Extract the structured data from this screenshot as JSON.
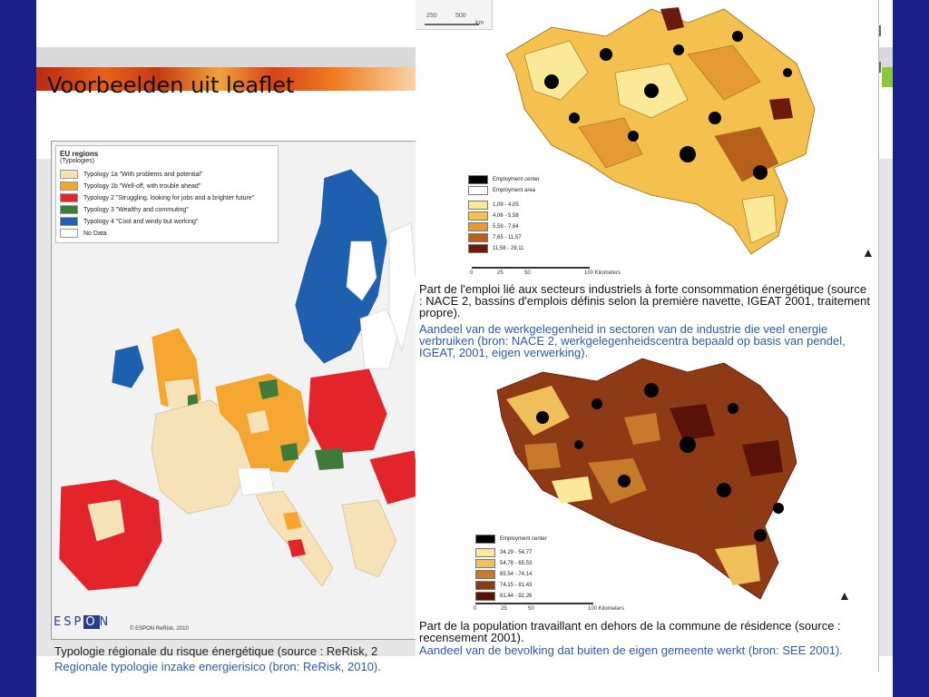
{
  "slide": {
    "title": "Voorbeelden uit leaflet"
  },
  "europe_map": {
    "legend_title": "EU regions",
    "legend_subtitle": "(Typologies)",
    "legend_items": [
      {
        "label": "Typology 1a \"With problems and potential\"",
        "color": "#f7e2b8"
      },
      {
        "label": "Typology 1b \"Well-off, with trouble ahead\"",
        "color": "#f4a630"
      },
      {
        "label": "Typology 2 \"Struggling, looking for jobs and a brighter future\"",
        "color": "#e3242b"
      },
      {
        "label": "Typology 3 \"Wealthy and commuting\"",
        "color": "#3f7a3a"
      },
      {
        "label": "Typology 4 \"Cool and windy but working\"",
        "color": "#1f5fb0"
      },
      {
        "label": "No Data",
        "color": "#ffffff"
      }
    ],
    "logo": "ESPON",
    "credit": "© ESPON ReRisk, 2010",
    "caption_fr": "Typologie régionale du risque énergétique (source : ReRisk, 2",
    "caption_nl": "Regionale typologie inzake energierisico (bron: ReRisk, 2010)."
  },
  "belgium_top": {
    "scale_labels": [
      "250",
      "500",
      "km"
    ],
    "legend_items": [
      {
        "label": "Employment center",
        "color": "#000000"
      },
      {
        "label": "Employment area",
        "color": "#ffffff"
      },
      {
        "label": "1,09 - 4,05",
        "color": "#fbe99a"
      },
      {
        "label": "4,06 - 5,58",
        "color": "#f4c14f"
      },
      {
        "label": "5,59 - 7,64",
        "color": "#e59a34"
      },
      {
        "label": "7,65 - 11,57",
        "color": "#b85f1c"
      },
      {
        "label": "11,58 - 29,11",
        "color": "#6b1a0c"
      }
    ],
    "km_scale": [
      "0",
      "25",
      "50",
      "100 Kilometers"
    ],
    "caption_fr": "Part de l'emploi lié aux secteurs industriels à forte consommation énergétique (source : NACE 2, bassins d'emplois définis selon la première navette, IGEAT 2001, traitement propre).",
    "caption_nl": "Aandeel van de werkgelegenheid in sectoren van de industrie die veel energie verbruiken (bron: NACE 2, werkgelegenheidscentra bepaald op basis van pendel, IGEAT, 2001, eigen verwerking)."
  },
  "belgium_bottom": {
    "legend_items": [
      {
        "label": "Employment center",
        "color": "#000000"
      },
      {
        "label": "34,29 - 54,77",
        "color": "#fbe99a"
      },
      {
        "label": "54,78 - 65,53",
        "color": "#efbf5a"
      },
      {
        "label": "65,54 - 74,14",
        "color": "#c77a2a"
      },
      {
        "label": "74,15 - 81,43",
        "color": "#8e3a15"
      },
      {
        "label": "81,44 - 92,26",
        "color": "#5a1208"
      }
    ],
    "km_scale": [
      "0",
      "25",
      "50",
      "100 Kilometers"
    ],
    "caption_fr": "Part de la population travaillant en dehors de la commune de résidence (source : recensement 2001).",
    "caption_nl": "Aandeel van de bevolking dat buiten de eigen gemeente werkt (bron: SEE 2001)."
  }
}
